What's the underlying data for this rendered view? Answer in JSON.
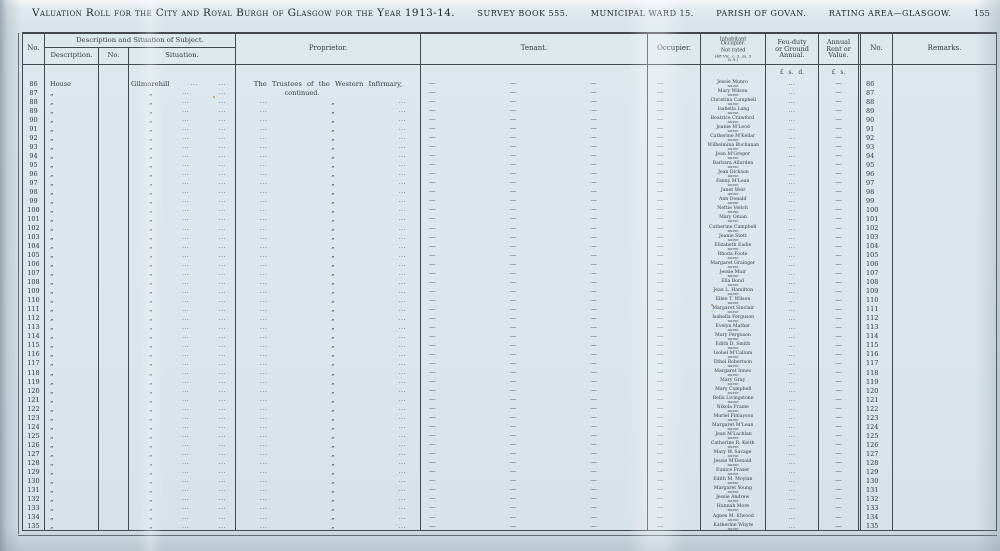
{
  "page": {
    "main_title": "Valuation Roll for the City and Royal Burgh of Glasgow for the Year 1913-14.",
    "title_segments": [
      "SURVEY BOOK 555.",
      "MUNICIPAL WARD 15.",
      "PARISH OF GOVAN.",
      "RATING AREA—GLASGOW."
    ],
    "page_number": "155"
  },
  "symbols": {
    "ditto": "„",
    "dots": "...",
    "dash": "—"
  },
  "table": {
    "headers": {
      "no_left": "No.",
      "group": "Description and Situation of Subject.",
      "description": "Description.",
      "no_mid": "No.",
      "situation": "Situation.",
      "proprietor": "Proprietor.",
      "tenant": "Tenant.",
      "occupier": "Occupier.",
      "inhabitant_l1": "Inhabitant Occupier.",
      "inhabitant_l2": "Not rated",
      "inhabitant_l3": "(48 Vic. c. 3, ss. 3 & 9.)",
      "feu_l1": "Feu-duty",
      "feu_l2": "or Ground",
      "feu_l3": "Annual.",
      "annual_l1": "Annual",
      "annual_l2": "Rent or",
      "annual_l3": "Value.",
      "no_right": "No.",
      "remarks": "Remarks."
    },
    "currency": {
      "feu": "£ s. d.",
      "annual": "£ s."
    },
    "first_row": {
      "description": "House",
      "situation": "Gilmorehill"
    },
    "proprietor_line1": "The Trustees of the Western Infirmary,",
    "proprietor_line2": "continued.",
    "occupation": "nurse",
    "rows": [
      {
        "no": "86",
        "name": "Jessie Munro"
      },
      {
        "no": "87",
        "name": "Mary Wilson"
      },
      {
        "no": "88",
        "name": "Christina Campbell"
      },
      {
        "no": "89",
        "name": "Isabella Lang"
      },
      {
        "no": "90",
        "name": "Beatrice Crawford"
      },
      {
        "no": "91",
        "name": "Jeanie M'Leod"
      },
      {
        "no": "92",
        "name": "Catherine M'Kellar"
      },
      {
        "no": "93",
        "name": "Wilhelmina Buchanan"
      },
      {
        "no": "94",
        "name": "Jean M'Gregor"
      },
      {
        "no": "95",
        "name": "Barbara Allarden"
      },
      {
        "no": "96",
        "name": "Jean Dickson"
      },
      {
        "no": "97",
        "name": "Fanny M'Lean"
      },
      {
        "no": "98",
        "name": "Janet Weir"
      },
      {
        "no": "99",
        "name": "Ann Donald"
      },
      {
        "no": "100",
        "name": "Nettie Veitch"
      },
      {
        "no": "101",
        "name": "Mary Oman"
      },
      {
        "no": "102",
        "name": "Catherine Campbell"
      },
      {
        "no": "103",
        "name": "Jeanie Stott"
      },
      {
        "no": "104",
        "name": "Elizabeth Eadie"
      },
      {
        "no": "105",
        "name": "Rhoda Foote"
      },
      {
        "no": "106",
        "name": "Margaret Grainger"
      },
      {
        "no": "107",
        "name": "Jessie Muir"
      },
      {
        "no": "108",
        "name": "Ella Bond"
      },
      {
        "no": "109",
        "name": "Jean L. Hamilton"
      },
      {
        "no": "110",
        "name": "Ellen T. Wilson"
      },
      {
        "no": "111",
        "name": "Margaret Sinclair"
      },
      {
        "no": "112",
        "name": "Isabella Ferguson"
      },
      {
        "no": "113",
        "name": "Evelyn Mather"
      },
      {
        "no": "114",
        "name": "Mary Ferguson"
      },
      {
        "no": "115",
        "name": "Edith D. Smith"
      },
      {
        "no": "116",
        "name": "Isobel M'Callum"
      },
      {
        "no": "117",
        "name": "Ethel Robertson"
      },
      {
        "no": "118",
        "name": "Margaret Innes"
      },
      {
        "no": "119",
        "name": "Mary Gray"
      },
      {
        "no": "120",
        "name": "Mary Campbell"
      },
      {
        "no": "121",
        "name": "Bella Livingstone"
      },
      {
        "no": "122",
        "name": "Nikola Frame"
      },
      {
        "no": "123",
        "name": "Muriel Finlayson"
      },
      {
        "no": "124",
        "name": "Margaret M'Lean"
      },
      {
        "no": "125",
        "name": "Jean M'Lachlan"
      },
      {
        "no": "126",
        "name": "Catherine R. Keith"
      },
      {
        "no": "127",
        "name": "Mary W. Savage"
      },
      {
        "no": "128",
        "name": "Jessie M'Donald"
      },
      {
        "no": "129",
        "name": "Eunice Fraser"
      },
      {
        "no": "130",
        "name": "Edith M. Moylan"
      },
      {
        "no": "131",
        "name": "Margaret Young"
      },
      {
        "no": "132",
        "name": "Jessie Andrew"
      },
      {
        "no": "133",
        "name": "Hannah More"
      },
      {
        "no": "134",
        "name": "Agnes M. Elwood"
      },
      {
        "no": "135",
        "name": "Katherine Whyte"
      }
    ]
  }
}
